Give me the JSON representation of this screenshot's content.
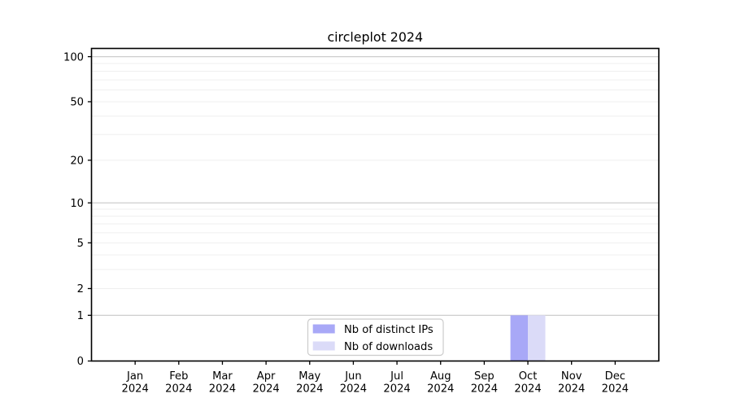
{
  "figure": {
    "background": "#ffffff"
  },
  "chart_data": {
    "type": "bar",
    "title": "circleplot 2024",
    "categories": [
      "Jan",
      "Feb",
      "Mar",
      "Apr",
      "May",
      "Jun",
      "Jul",
      "Aug",
      "Sep",
      "Oct",
      "Nov",
      "Dec"
    ],
    "year_label": "2024",
    "series": [
      {
        "name": "Nb of distinct IPs",
        "color": "#a8a8f7",
        "values": [
          0,
          0,
          0,
          0,
          0,
          0,
          0,
          0,
          0,
          1,
          0,
          0
        ]
      },
      {
        "name": "Nb of downloads",
        "color": "#dbdbf8",
        "values": [
          0,
          0,
          0,
          0,
          0,
          0,
          0,
          0,
          0,
          1,
          0,
          0
        ]
      }
    ],
    "xlabel": "",
    "ylabel": "",
    "yscale": "log1p",
    "ylim": [
      0,
      113.4
    ],
    "y_ticks": [
      0,
      1,
      2,
      5,
      10,
      20,
      50,
      100
    ],
    "y_major_gridlines": [
      1,
      10,
      100
    ],
    "y_minor_gridlines": [
      2,
      3,
      4,
      5,
      6,
      7,
      8,
      9,
      20,
      30,
      40,
      50,
      60,
      70,
      80,
      90
    ],
    "grid": "horizontal",
    "legend_position": "lower center"
  },
  "colors": {
    "axis": "#000000",
    "major_grid": "#cdcdcd",
    "minor_grid": "#efefef",
    "legend_border": "#cccccc",
    "text": "#000000"
  }
}
